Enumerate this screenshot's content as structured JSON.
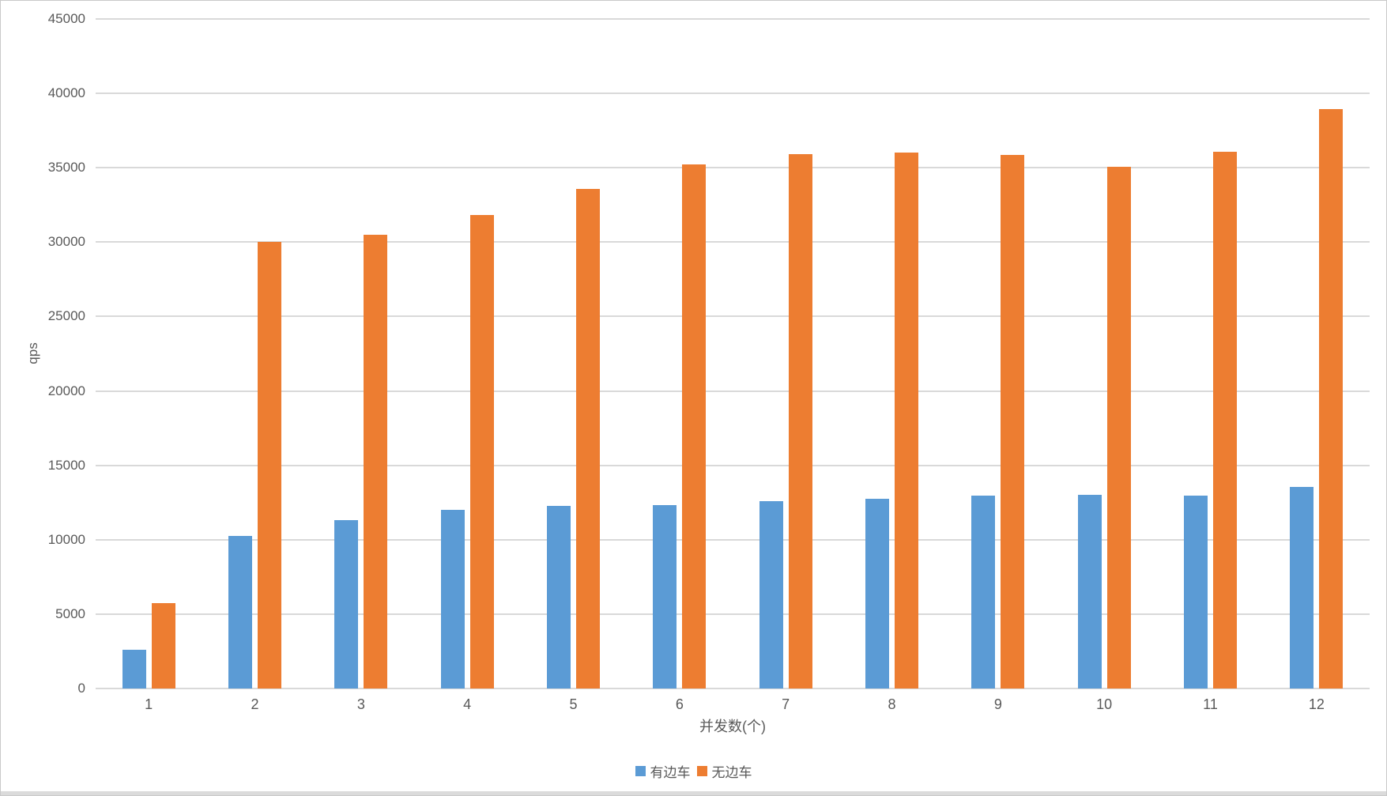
{
  "chart_data": {
    "type": "bar",
    "title": "",
    "xlabel": "并发数(个)",
    "ylabel": "qps",
    "categories": [
      "1",
      "2",
      "3",
      "4",
      "5",
      "6",
      "7",
      "8",
      "9",
      "10",
      "11",
      "12"
    ],
    "series": [
      {
        "name": "有边车",
        "color": "#5B9BD5",
        "values": [
          2600,
          10250,
          11300,
          12000,
          12250,
          12300,
          12600,
          12750,
          12950,
          13000,
          12950,
          13550
        ]
      },
      {
        "name": "无边车",
        "color": "#ED7D31",
        "values": [
          5750,
          30000,
          30500,
          31800,
          33600,
          35200,
          35900,
          36000,
          35850,
          35050,
          36100,
          38950
        ]
      }
    ],
    "ylim": [
      0,
      45000
    ],
    "yticks": [
      0,
      5000,
      10000,
      15000,
      20000,
      25000,
      30000,
      35000,
      40000,
      45000
    ],
    "grid": "horizontal",
    "legend_position": "bottom"
  },
  "colors": {
    "gridline": "#D9D9D9",
    "axis_line": "#D9D9D9",
    "text": "#595959",
    "window_border": "#C9C9C9",
    "bottom_strip": "#DBDBDB",
    "background": "#FFFFFF"
  }
}
